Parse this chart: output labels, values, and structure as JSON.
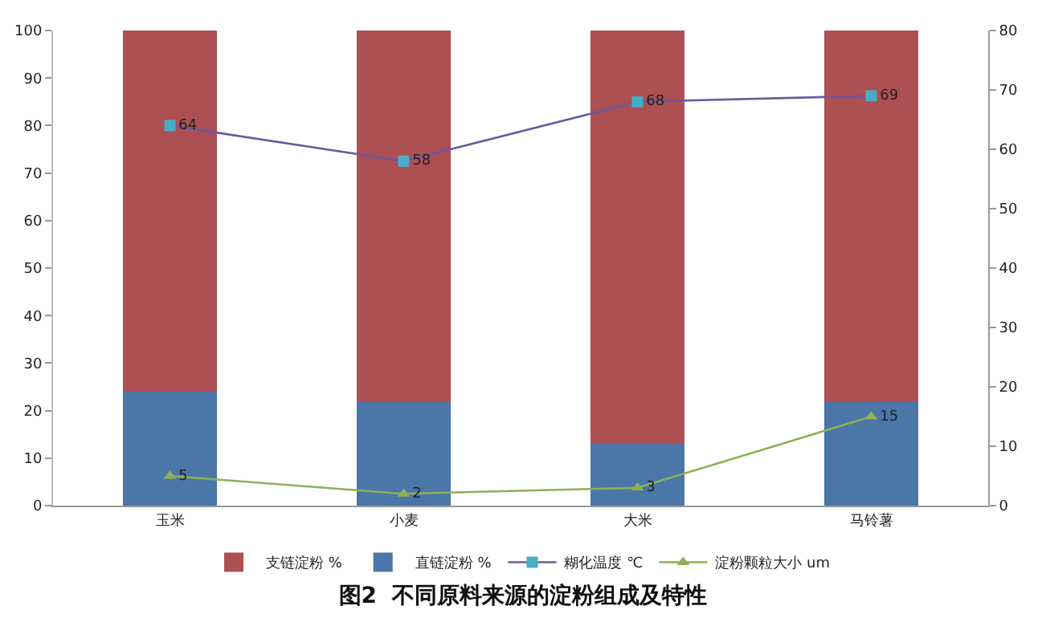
{
  "chart_data": {
    "type": "bar",
    "title": "图2  不同原料来源的淀粉组成及特性",
    "categories": [
      "玉米",
      "小麦",
      "大米",
      "马铃薯"
    ],
    "stacked": true,
    "series": [
      {
        "name": "直链淀粉 %",
        "color": "#4a76a8",
        "values": [
          24,
          22,
          13,
          22
        ]
      },
      {
        "name": "支链淀粉 %",
        "color": "#ad5054",
        "values": [
          76,
          78,
          87,
          78
        ]
      },
      {
        "name": "糊化温度 ℃",
        "type": "line",
        "axis": "y2",
        "color": "#6a5a9e",
        "marker": "square",
        "values": [
          64,
          58,
          68,
          69
        ],
        "value_labels": [
          "64",
          "58",
          "68",
          "69"
        ]
      },
      {
        "name": "淀粉颗粒大小 um",
        "type": "line",
        "axis": "y2",
        "color": "#8db056",
        "marker": "triangle",
        "values": [
          5,
          2,
          3,
          15
        ],
        "value_labels": [
          "5",
          "2",
          "3",
          "15"
        ]
      }
    ],
    "ylim": [
      0,
      100
    ],
    "yticks": [
      0,
      10,
      20,
      30,
      40,
      50,
      60,
      70,
      80,
      90,
      100
    ],
    "y2lim": [
      0,
      80
    ],
    "y2ticks": [
      0,
      10,
      20,
      30,
      40,
      50,
      60,
      70,
      80
    ],
    "grid": false,
    "legend": "bottom"
  }
}
